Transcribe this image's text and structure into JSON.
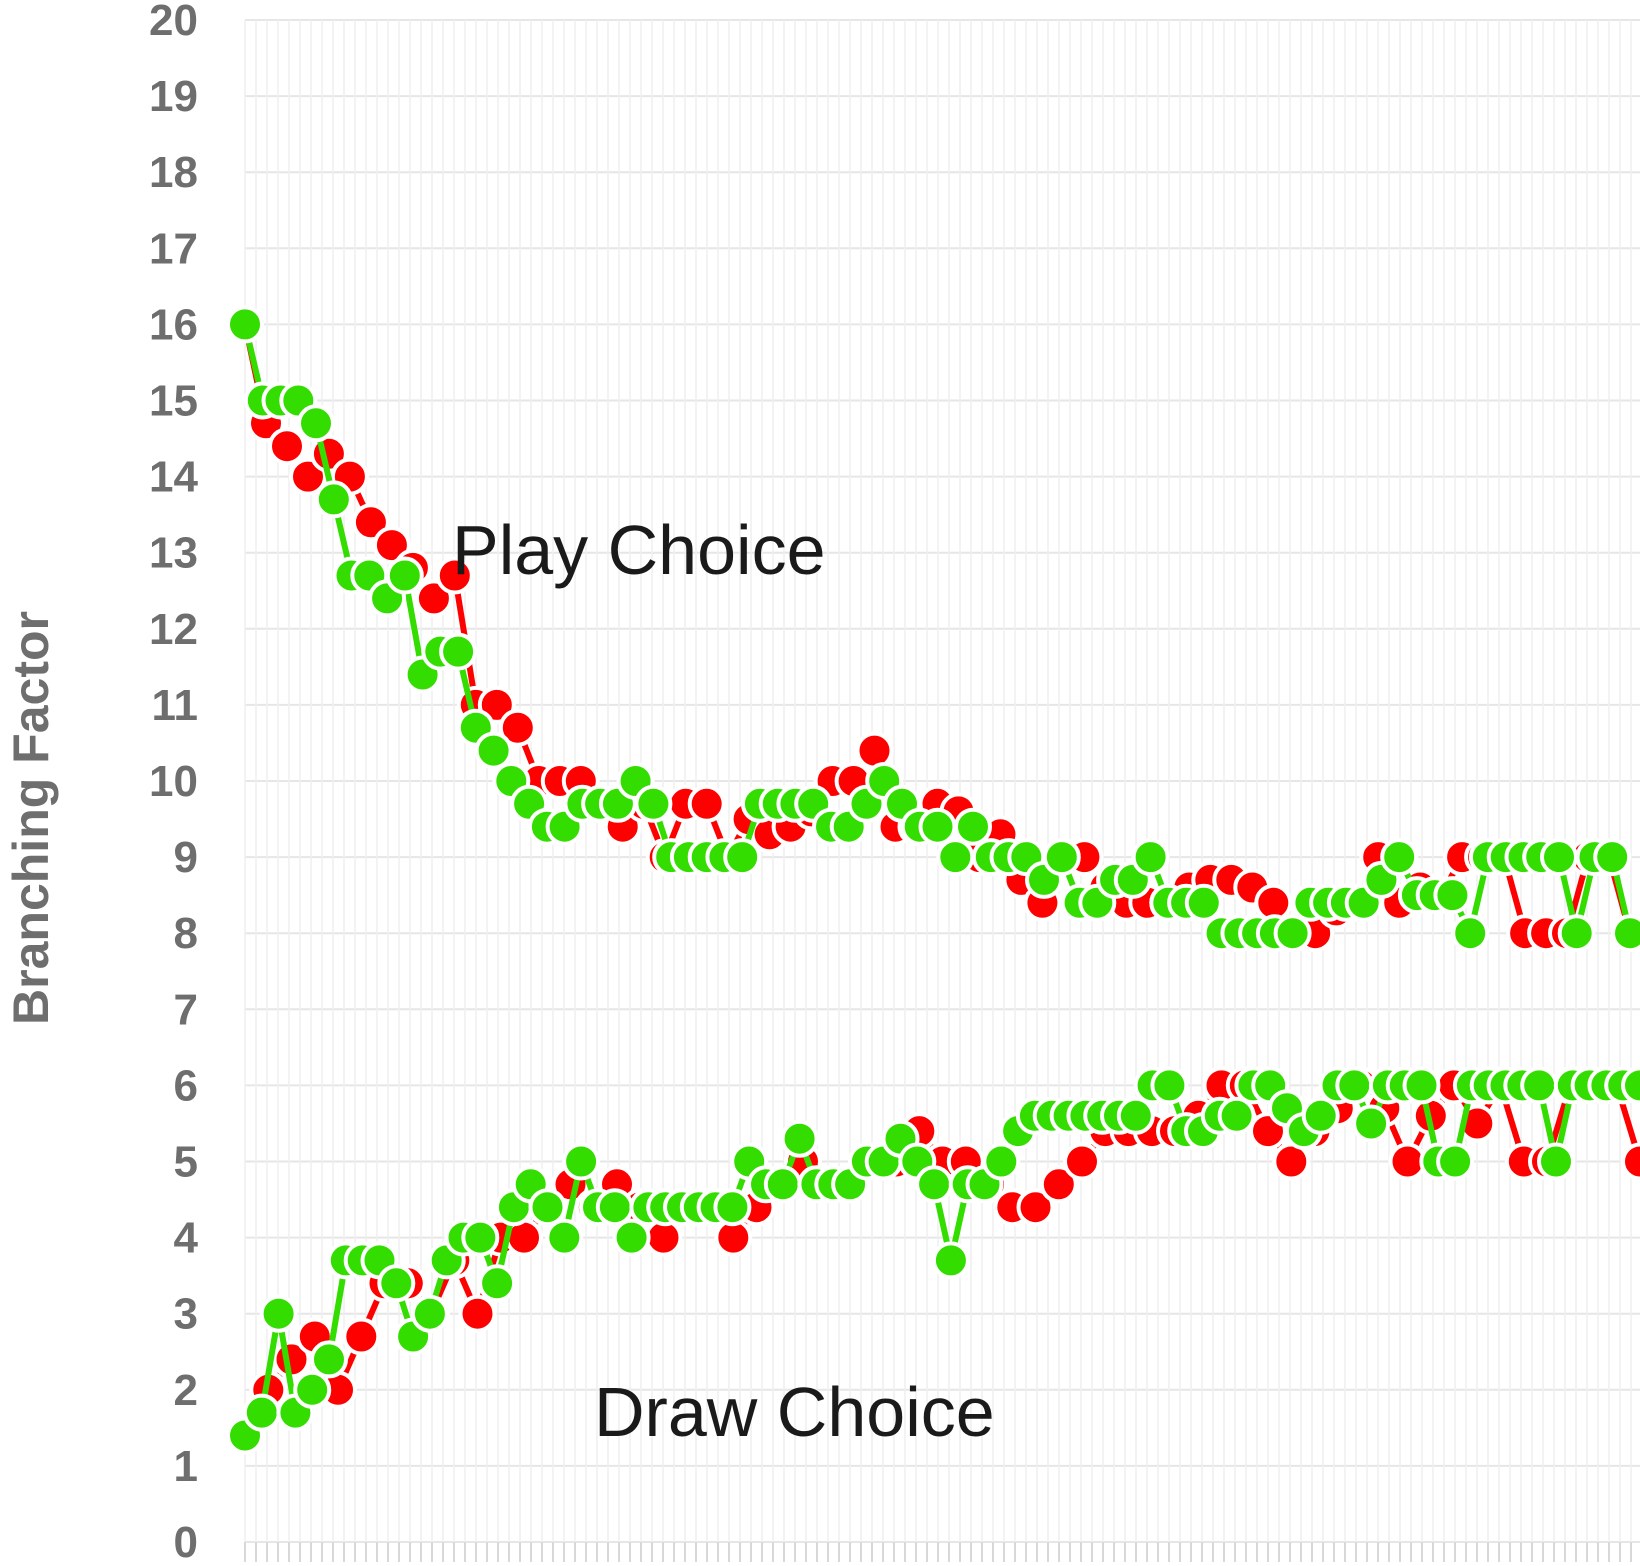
{
  "chart_data": {
    "type": "line",
    "ylabel": "Branching Factor",
    "ylim": [
      0,
      20
    ],
    "yticks": [
      "0",
      "1",
      "2",
      "3",
      "4",
      "5",
      "6",
      "7",
      "8",
      "9",
      "10",
      "11",
      "12",
      "13",
      "14",
      "15",
      "16",
      "17",
      "18",
      "19",
      "20"
    ],
    "grid": true,
    "annotations": [
      "Play Choice",
      "Draw Choice"
    ],
    "series": [
      {
        "color": "#ff0000",
        "group": "play",
        "values": [
          16,
          14.7,
          14.4,
          14,
          14.3,
          14,
          13.4,
          13.1,
          12.8,
          12.4,
          12.7,
          11,
          11,
          10.7,
          10,
          10,
          10,
          9.7,
          9.4,
          9.7,
          9,
          9.7,
          9.7,
          9,
          9.5,
          9.3,
          9.4,
          9.6,
          10,
          10,
          10.4,
          9.4,
          9.4,
          9.7,
          9.6,
          9,
          9.3,
          8.7,
          8.4,
          9,
          9,
          8.6,
          8.4,
          8.4,
          8.4,
          8.6,
          8.7,
          8.7,
          8.6,
          8.4,
          8,
          8,
          8.3,
          8.4,
          9,
          8.4,
          8.6,
          8.5,
          9,
          9,
          9,
          8,
          8,
          8,
          9,
          9,
          8
        ]
      },
      {
        "color": "#33dd00",
        "group": "play",
        "values": [
          16,
          15,
          15,
          15,
          14.7,
          13.7,
          12.7,
          12.7,
          12.4,
          12.7,
          11.4,
          11.7,
          11.7,
          10.7,
          10.4,
          10,
          9.7,
          9.4,
          9.4,
          9.7,
          9.7,
          9.7,
          10,
          9.7,
          9,
          9,
          9,
          9,
          9,
          9.7,
          9.7,
          9.7,
          9.7,
          9.4,
          9.4,
          9.7,
          10,
          9.7,
          9.4,
          9.4,
          9,
          9.4,
          9,
          9,
          9,
          8.7,
          9,
          8.4,
          8.4,
          8.7,
          8.7,
          9,
          8.4,
          8.4,
          8.4,
          8,
          8,
          8,
          8,
          8,
          8.4,
          8.4,
          8.4,
          8.4,
          8.7,
          9,
          8.5,
          8.5,
          8.5,
          8,
          9,
          9,
          9,
          9,
          9,
          8,
          9,
          9,
          8
        ]
      },
      {
        "color": "#ff0000",
        "group": "draw",
        "values": [
          1.4,
          2,
          2.4,
          2.7,
          2,
          2.7,
          3.4,
          3.4,
          3,
          3.7,
          3,
          4,
          4,
          4.4,
          4.7,
          4.4,
          4.7,
          4.4,
          4,
          4.4,
          4.4,
          4,
          4.4,
          4.7,
          5,
          4.7,
          4.7,
          5,
          5,
          5.4,
          5,
          5,
          4.7,
          4.4,
          4.4,
          4.7,
          5,
          5.4,
          5.4,
          5.4,
          5.4,
          5.6,
          6,
          6,
          5.4,
          5,
          5.4,
          5.7,
          6,
          5.7,
          5,
          5.6,
          6,
          5.5,
          6,
          5,
          5,
          6,
          6,
          6,
          5
        ]
      },
      {
        "color": "#33dd00",
        "group": "draw",
        "values": [
          1.4,
          1.7,
          3,
          1.7,
          2,
          2.4,
          3.7,
          3.7,
          3.7,
          3.4,
          2.7,
          3,
          3.7,
          4,
          4,
          3.4,
          4.4,
          4.7,
          4.4,
          4,
          5,
          4.4,
          4.4,
          4,
          4.4,
          4.4,
          4.4,
          4.4,
          4.4,
          4.4,
          5,
          4.7,
          4.7,
          5.3,
          4.7,
          4.7,
          4.7,
          5,
          5,
          5.3,
          5,
          4.7,
          3.7,
          4.7,
          4.7,
          5,
          5.4,
          5.6,
          5.6,
          5.6,
          5.6,
          5.6,
          5.6,
          5.6,
          6,
          6,
          5.4,
          5.4,
          5.6,
          5.6,
          6,
          6,
          5.7,
          5.4,
          5.6,
          6,
          6,
          5.5,
          6,
          6,
          6,
          5,
          5,
          6,
          6,
          6,
          6,
          6,
          5,
          6,
          6,
          6,
          6,
          6
        ]
      }
    ]
  }
}
